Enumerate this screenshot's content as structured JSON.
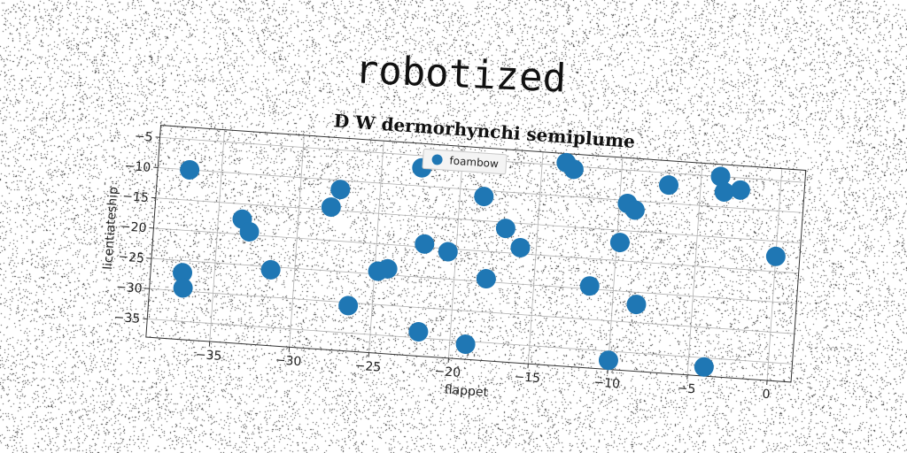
{
  "figure": {
    "suptitle": "robotized"
  },
  "chart_data": {
    "type": "scatter",
    "title": "D W dermorhynchi semiplume",
    "xlabel": "flappet",
    "ylabel": "licentiateship",
    "xlim": [
      -39,
      1.5
    ],
    "ylim": [
      -38,
      -3
    ],
    "xticks": [
      -35,
      -30,
      -25,
      -20,
      -15,
      -10,
      -5,
      0
    ],
    "yticks": [
      -5,
      -10,
      -15,
      -20,
      -25,
      -30,
      -35
    ],
    "grid": true,
    "legend": {
      "position": "top-center",
      "entries": [
        "foambow"
      ]
    },
    "colors": {
      "series": "#1f77b4",
      "grid": "#b0b0b0",
      "frame": "#333333"
    },
    "series": [
      {
        "name": "foambow",
        "x": [
          -37.0,
          -37.0,
          -36.9,
          -33.5,
          -33.0,
          -31.5,
          -28.0,
          -27.5,
          -26.5,
          -24.8,
          -24.2,
          -22.5,
          -22.0,
          -22.0,
          -20.5,
          -19.0,
          -18.5,
          -18.0,
          -17.0,
          -16.0,
          -13.5,
          -13.0,
          -11.5,
          -10.0,
          -9.8,
          -9.5,
          -9.0,
          -8.5,
          -7.0,
          -4.0,
          -3.8,
          -3.5,
          -2.5,
          0.0
        ],
        "y": [
          -10.0,
          -27.0,
          -29.5,
          -17.5,
          -19.5,
          -25.5,
          -14.5,
          -11.5,
          -30.5,
          -24.5,
          -24.0,
          -7.0,
          -19.5,
          -34.0,
          -20.5,
          -35.5,
          -11.0,
          -24.5,
          -16.0,
          -19.0,
          -4.5,
          -5.5,
          -24.5,
          -36.5,
          -17.0,
          -10.5,
          -11.5,
          -27.0,
          -7.0,
          -36.5,
          -5.0,
          -7.5,
          -7.0,
          -17.5
        ]
      }
    ]
  }
}
